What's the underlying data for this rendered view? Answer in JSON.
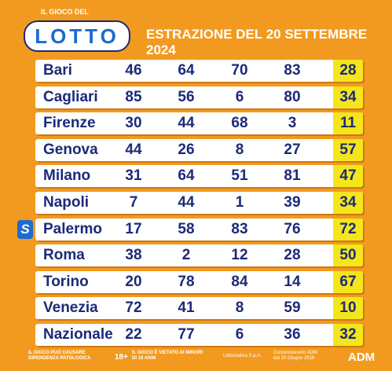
{
  "header": {
    "logo_top": "IL GIOCO DEL",
    "logo": "LOTTO",
    "title": "ESTRAZIONE DEL 20 SETTEMBRE 2024"
  },
  "table": {
    "rows": [
      [
        "Bari",
        46,
        64,
        70,
        83,
        28
      ],
      [
        "Cagliari",
        85,
        56,
        6,
        80,
        34
      ],
      [
        "Firenze",
        30,
        44,
        68,
        3,
        11
      ],
      [
        "Genova",
        44,
        26,
        8,
        27,
        57
      ],
      [
        "Milano",
        31,
        64,
        51,
        81,
        47
      ],
      [
        "Napoli",
        7,
        44,
        1,
        39,
        34
      ],
      [
        "Palermo",
        17,
        58,
        83,
        76,
        72
      ],
      [
        "Roma",
        38,
        2,
        12,
        28,
        50
      ],
      [
        "Torino",
        20,
        78,
        84,
        14,
        67
      ],
      [
        "Venezia",
        72,
        41,
        8,
        59,
        10
      ],
      [
        "Nazionale",
        22,
        77,
        6,
        36,
        32
      ]
    ],
    "badge": "S"
  },
  "footer": {
    "warning": "IL GIOCO PUÒ CAUSARE DIPENDENZA PATOLOGICA",
    "age": "18+",
    "minors": "IL GIOCO È VIETATO AI MINORI DI 18 ANNI",
    "operator": "Lottomatica S.p.A.",
    "license": "Concessionario ADM dal 20 Giugno 2016",
    "adm": "ADM"
  }
}
